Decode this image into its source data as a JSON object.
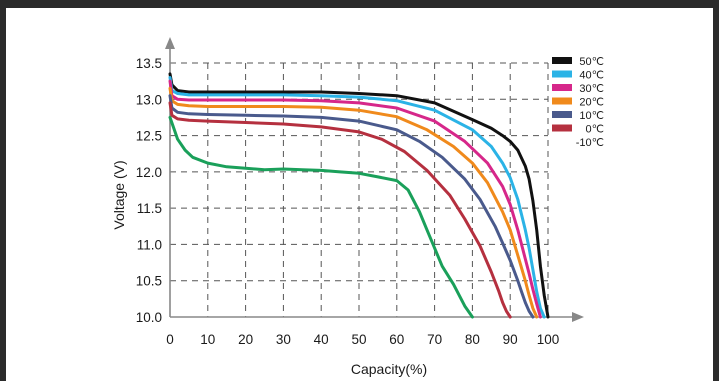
{
  "chart_data": {
    "type": "line",
    "xlabel": "Capacity(%)",
    "ylabel": "Voltage (V)",
    "xlim": [
      0,
      100
    ],
    "ylim": [
      10.0,
      13.5
    ],
    "x_ticks": [
      "0",
      "10",
      "20",
      "30",
      "40",
      "50",
      "60",
      "70",
      "80",
      "90",
      "100"
    ],
    "y_ticks": [
      "10.0",
      "10.5",
      "11.0",
      "11.5",
      "12.0",
      "12.5",
      "13.0",
      "13.5"
    ],
    "grid": true,
    "legend_position": "top-right",
    "series": [
      {
        "name": "50℃",
        "color": "#111111",
        "x": [
          0,
          0.5,
          2,
          5,
          10,
          20,
          30,
          40,
          50,
          60,
          70,
          80,
          85,
          88,
          90,
          92,
          94,
          95,
          96,
          97,
          98,
          99,
          100
        ],
        "y": [
          13.35,
          13.2,
          13.12,
          13.1,
          13.1,
          13.1,
          13.1,
          13.1,
          13.08,
          13.05,
          12.95,
          12.72,
          12.6,
          12.5,
          12.42,
          12.3,
          12.08,
          11.9,
          11.6,
          11.2,
          10.7,
          10.3,
          10.0
        ]
      },
      {
        "name": "40℃",
        "color": "#2bb3e6",
        "x": [
          0,
          0.5,
          2,
          5,
          10,
          20,
          30,
          40,
          50,
          60,
          70,
          80,
          85,
          88,
          90,
          92,
          94,
          95,
          96,
          97,
          98,
          99
        ],
        "y": [
          13.3,
          13.12,
          13.08,
          13.06,
          13.06,
          13.06,
          13.06,
          13.05,
          13.03,
          12.98,
          12.85,
          12.58,
          12.35,
          12.12,
          11.92,
          11.62,
          11.2,
          10.95,
          10.65,
          10.35,
          10.12,
          10.0
        ]
      },
      {
        "name": "30℃",
        "color": "#d6278a",
        "x": [
          0,
          0.5,
          2,
          5,
          10,
          20,
          30,
          40,
          50,
          60,
          70,
          78,
          84,
          88,
          90,
          92,
          94,
          95,
          96,
          97,
          98
        ],
        "y": [
          13.25,
          13.05,
          13.0,
          12.99,
          12.99,
          12.99,
          12.99,
          12.98,
          12.95,
          12.88,
          12.7,
          12.42,
          12.12,
          11.8,
          11.55,
          11.2,
          10.8,
          10.6,
          10.38,
          10.18,
          10.0
        ]
      },
      {
        "name": "20℃",
        "color": "#f08a1c",
        "x": [
          0,
          0.5,
          2,
          5,
          10,
          20,
          30,
          40,
          50,
          60,
          68,
          75,
          80,
          84,
          88,
          90,
          92,
          94,
          95,
          96,
          97
        ],
        "y": [
          13.15,
          12.98,
          12.93,
          12.91,
          12.9,
          12.9,
          12.9,
          12.89,
          12.85,
          12.76,
          12.58,
          12.35,
          12.12,
          11.85,
          11.45,
          11.2,
          10.85,
          10.5,
          10.3,
          10.12,
          10.0
        ]
      },
      {
        "name": "10℃",
        "color": "#4a5a8c",
        "x": [
          0,
          0.5,
          2,
          5,
          10,
          20,
          30,
          40,
          50,
          60,
          66,
          72,
          78,
          82,
          86,
          88,
          90,
          92,
          93,
          94,
          95,
          96
        ],
        "y": [
          13.05,
          12.88,
          12.82,
          12.8,
          12.79,
          12.78,
          12.77,
          12.75,
          12.7,
          12.58,
          12.42,
          12.2,
          11.9,
          11.62,
          11.25,
          11.02,
          10.78,
          10.5,
          10.35,
          10.2,
          10.08,
          10.0
        ]
      },
      {
        "name": "0℃",
        "color": "#b5303f",
        "x": [
          0,
          0.5,
          2,
          5,
          10,
          20,
          30,
          40,
          50,
          56,
          62,
          68,
          74,
          78,
          82,
          85,
          87,
          88,
          89,
          90
        ],
        "y": [
          12.95,
          12.78,
          12.73,
          12.71,
          12.7,
          12.68,
          12.66,
          12.62,
          12.55,
          12.45,
          12.28,
          12.02,
          11.68,
          11.35,
          10.98,
          10.62,
          10.35,
          10.2,
          10.08,
          10.0
        ]
      },
      {
        "name": "-10℃",
        "color": "#1aa05a",
        "x": [
          0,
          1,
          2,
          4,
          6,
          10,
          15,
          20,
          25,
          30,
          35,
          40,
          45,
          50,
          55,
          60,
          63,
          66,
          68,
          70,
          72,
          75,
          78,
          80
        ],
        "y": [
          12.75,
          12.6,
          12.45,
          12.3,
          12.2,
          12.12,
          12.07,
          12.05,
          12.03,
          12.04,
          12.03,
          12.02,
          12.0,
          11.98,
          11.93,
          11.88,
          11.75,
          11.45,
          11.2,
          10.95,
          10.7,
          10.45,
          10.15,
          10.0
        ]
      }
    ]
  }
}
